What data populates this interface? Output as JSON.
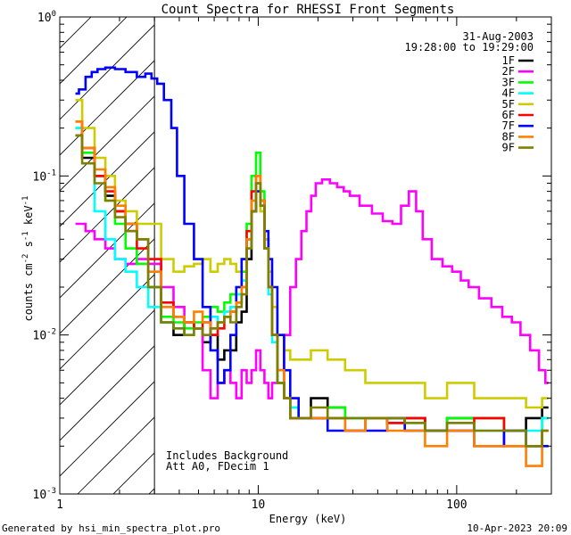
{
  "chart_data": {
    "type": "line",
    "title": "Count Spectra for RHESSI Front Segments",
    "xlabel": "Energy (keV)",
    "ylabel_main": "counts cm",
    "ylabel_sup1": "-2",
    "ylabel_mid1": " s",
    "ylabel_sup2": "-1",
    "ylabel_mid2": " keV",
    "ylabel_sup3": "-1",
    "xscale": "log",
    "yscale": "log",
    "xlim": [
      1,
      300
    ],
    "ylim": [
      0.001,
      1
    ],
    "xticks": [
      {
        "value": 1,
        "label": "1"
      },
      {
        "value": 10,
        "label": "10"
      },
      {
        "value": 100,
        "label": "100"
      }
    ],
    "yticks": [
      {
        "value": 1,
        "base": "10",
        "exp": "0"
      },
      {
        "value": 0.1,
        "base": "10",
        "exp": "-1"
      },
      {
        "value": 0.01,
        "base": "10",
        "exp": "-2"
      },
      {
        "value": 0.001,
        "base": "10",
        "exp": "-3"
      }
    ],
    "date": "31-Aug-2003",
    "time_range": "19:28:00 to 19:29:00",
    "annotation_line1": "Includes Background",
    "annotation_line2": "Att A0, FDecim 1",
    "hatched_region_max_kev": 3,
    "footer_left": "Generated by hsi_min_spectra_plot.pro",
    "footer_right": "10-Apr-2023 20:09",
    "series": [
      {
        "name": "1F",
        "color": "#000000",
        "x": [
          1.2,
          1.4,
          1.6,
          1.8,
          2,
          2.3,
          2.6,
          3,
          3.5,
          4,
          4.5,
          5,
          5.5,
          6,
          6.5,
          7,
          7.5,
          8,
          8.5,
          9,
          9.5,
          10,
          10.5,
          11,
          11.5,
          12,
          13,
          14,
          15,
          17,
          20,
          25,
          30,
          40,
          50,
          60,
          80,
          100,
          150,
          200,
          250,
          290
        ],
        "y": [
          0.18,
          0.13,
          0.1,
          0.075,
          0.06,
          0.05,
          0.04,
          0.02,
          0.012,
          0.01,
          0.012,
          0.011,
          0.009,
          0.01,
          0.007,
          0.008,
          0.008,
          0.012,
          0.014,
          0.03,
          0.06,
          0.09,
          0.07,
          0.04,
          0.02,
          0.01,
          0.005,
          0.004,
          0.003,
          0.003,
          0.004,
          0.0035,
          0.003,
          0.003,
          0.0028,
          0.003,
          0.0025,
          0.003,
          0.003,
          0.0025,
          0.003,
          0.0035
        ]
      },
      {
        "name": "2F",
        "color": "#ff00ff",
        "x": [
          1.2,
          1.3,
          1.4,
          1.6,
          1.8,
          2,
          2.3,
          2.6,
          3,
          3.5,
          4,
          4.5,
          5,
          5.5,
          6,
          6.5,
          7,
          7.5,
          8,
          8.5,
          9,
          9.5,
          10,
          10.5,
          11,
          11.5,
          12,
          13,
          14,
          15,
          16,
          17,
          18,
          19,
          20,
          22,
          24,
          26,
          28,
          30,
          35,
          40,
          45,
          50,
          55,
          60,
          65,
          70,
          80,
          90,
          100,
          110,
          120,
          140,
          160,
          180,
          200,
          220,
          250,
          270,
          290
        ],
        "y": [
          0.05,
          0.05,
          0.045,
          0.04,
          0.035,
          0.03,
          0.028,
          0.03,
          0.028,
          0.02,
          0.015,
          0.012,
          0.011,
          0.006,
          0.004,
          0.005,
          0.006,
          0.005,
          0.004,
          0.006,
          0.005,
          0.006,
          0.008,
          0.006,
          0.005,
          0.004,
          0.005,
          0.006,
          0.01,
          0.02,
          0.03,
          0.045,
          0.06,
          0.075,
          0.09,
          0.095,
          0.09,
          0.085,
          0.08,
          0.075,
          0.065,
          0.058,
          0.052,
          0.05,
          0.065,
          0.08,
          0.06,
          0.04,
          0.03,
          0.027,
          0.025,
          0.022,
          0.02,
          0.017,
          0.015,
          0.013,
          0.012,
          0.01,
          0.008,
          0.006,
          0.005
        ]
      },
      {
        "name": "3F",
        "color": "#00ff00",
        "x": [
          1.2,
          1.4,
          1.6,
          1.8,
          2,
          2.3,
          2.6,
          3,
          3.5,
          4,
          4.5,
          5,
          5.5,
          6,
          6.5,
          7,
          7.5,
          8,
          8.5,
          9,
          9.5,
          10,
          10.5,
          11,
          11.5,
          12,
          13,
          14,
          15,
          17,
          20,
          25,
          30,
          40,
          50,
          60,
          80,
          100,
          150,
          200,
          250,
          290
        ],
        "y": [
          0.2,
          0.14,
          0.1,
          0.07,
          0.05,
          0.035,
          0.028,
          0.02,
          0.013,
          0.012,
          0.011,
          0.012,
          0.013,
          0.015,
          0.014,
          0.016,
          0.018,
          0.02,
          0.025,
          0.05,
          0.1,
          0.14,
          0.08,
          0.04,
          0.02,
          0.01,
          0.005,
          0.004,
          0.0035,
          0.003,
          0.003,
          0.0035,
          0.003,
          0.003,
          0.003,
          0.0028,
          0.0025,
          0.003,
          0.003,
          0.0025,
          0.002,
          0.003
        ]
      },
      {
        "name": "4F",
        "color": "#00ffff",
        "x": [
          1.2,
          1.4,
          1.6,
          1.8,
          2,
          2.3,
          2.6,
          3,
          3.5,
          4,
          4.5,
          5,
          5.5,
          6,
          6.5,
          7,
          7.5,
          8,
          8.5,
          9,
          9.5,
          10,
          10.5,
          11,
          11.5,
          12,
          13,
          14,
          15,
          17,
          20,
          25,
          30,
          40,
          50,
          60,
          80,
          100,
          150,
          200,
          250,
          290
        ],
        "y": [
          0.2,
          0.15,
          0.06,
          0.04,
          0.03,
          0.025,
          0.02,
          0.015,
          0.012,
          0.011,
          0.01,
          0.011,
          0.012,
          0.013,
          0.012,
          0.014,
          0.015,
          0.018,
          0.022,
          0.04,
          0.07,
          0.09,
          0.06,
          0.035,
          0.018,
          0.009,
          0.005,
          0.004,
          0.0035,
          0.003,
          0.003,
          0.003,
          0.003,
          0.003,
          0.0028,
          0.0025,
          0.0025,
          0.0028,
          0.0025,
          0.002,
          0.0025,
          0.003
        ]
      },
      {
        "name": "5F",
        "color": "#cccc00",
        "x": [
          1.2,
          1.4,
          1.6,
          1.8,
          2,
          2.3,
          2.6,
          3,
          3.5,
          4,
          4.5,
          5,
          5.5,
          6,
          6.5,
          7,
          7.5,
          8,
          8.5,
          9,
          9.5,
          10,
          10.5,
          11,
          11.5,
          12,
          13,
          14,
          15,
          17,
          20,
          25,
          30,
          40,
          50,
          60,
          80,
          100,
          150,
          200,
          250,
          290
        ],
        "y": [
          0.3,
          0.2,
          0.13,
          0.1,
          0.07,
          0.06,
          0.05,
          0.05,
          0.03,
          0.025,
          0.027,
          0.028,
          0.03,
          0.025,
          0.028,
          0.03,
          0.028,
          0.025,
          0.03,
          0.04,
          0.06,
          0.08,
          0.06,
          0.04,
          0.025,
          0.015,
          0.01,
          0.008,
          0.007,
          0.007,
          0.008,
          0.007,
          0.006,
          0.005,
          0.005,
          0.005,
          0.004,
          0.005,
          0.004,
          0.004,
          0.0035,
          0.004
        ]
      },
      {
        "name": "6F",
        "color": "#ff0000",
        "x": [
          1.2,
          1.4,
          1.6,
          1.8,
          2,
          2.3,
          2.6,
          3,
          3.5,
          4,
          4.5,
          5,
          5.5,
          6,
          6.5,
          7,
          7.5,
          8,
          8.5,
          9,
          9.5,
          10,
          10.5,
          11,
          11.5,
          12,
          13,
          14,
          15,
          17,
          20,
          25,
          30,
          40,
          50,
          60,
          80,
          100,
          150,
          200,
          250,
          290
        ],
        "y": [
          0.22,
          0.15,
          0.1,
          0.08,
          0.06,
          0.045,
          0.035,
          0.03,
          0.016,
          0.013,
          0.012,
          0.011,
          0.012,
          0.01,
          0.011,
          0.013,
          0.014,
          0.016,
          0.02,
          0.045,
          0.08,
          0.1,
          0.07,
          0.035,
          0.02,
          0.01,
          0.006,
          0.004,
          0.003,
          0.003,
          0.003,
          0.003,
          0.0025,
          0.003,
          0.0028,
          0.003,
          0.0025,
          0.0025,
          0.003,
          0.002,
          0.002,
          0.0025
        ]
      },
      {
        "name": "7F",
        "color": "#0000ff",
        "x": [
          1.2,
          1.3,
          1.4,
          1.5,
          1.6,
          1.8,
          2,
          2.3,
          2.6,
          2.8,
          3,
          3.2,
          3.5,
          3.8,
          4,
          4.5,
          5,
          5.5,
          6,
          6.5,
          7,
          7.5,
          8,
          8.5,
          9,
          9.5,
          10,
          10.5,
          11,
          11.5,
          12,
          13,
          14,
          15,
          17,
          20,
          25,
          30,
          40,
          50,
          60,
          80,
          100,
          150,
          200,
          250,
          290
        ],
        "y": [
          0.33,
          0.35,
          0.42,
          0.45,
          0.47,
          0.48,
          0.47,
          0.45,
          0.42,
          0.44,
          0.41,
          0.38,
          0.3,
          0.2,
          0.1,
          0.05,
          0.03,
          0.015,
          0.008,
          0.005,
          0.006,
          0.01,
          0.02,
          0.03,
          0.04,
          0.06,
          0.08,
          0.065,
          0.045,
          0.03,
          0.02,
          0.01,
          0.006,
          0.004,
          0.003,
          0.003,
          0.0025,
          0.0025,
          0.0025,
          0.003,
          0.0025,
          0.0025,
          0.0025,
          0.002,
          0.0025,
          0.002,
          0.002
        ]
      },
      {
        "name": "8F",
        "color": "#ff8000",
        "x": [
          1.2,
          1.4,
          1.6,
          1.8,
          2,
          2.3,
          2.6,
          3,
          3.5,
          4,
          4.5,
          5,
          5.5,
          6,
          6.5,
          7,
          7.5,
          8,
          8.5,
          9,
          9.5,
          10,
          10.5,
          11,
          11.5,
          12,
          13,
          14,
          15,
          17,
          20,
          25,
          30,
          40,
          50,
          60,
          80,
          100,
          150,
          200,
          250,
          290
        ],
        "y": [
          0.22,
          0.15,
          0.11,
          0.085,
          0.065,
          0.05,
          0.04,
          0.025,
          0.015,
          0.013,
          0.012,
          0.014,
          0.012,
          0.011,
          0.012,
          0.013,
          0.014,
          0.016,
          0.02,
          0.04,
          0.07,
          0.1,
          0.07,
          0.035,
          0.02,
          0.01,
          0.006,
          0.004,
          0.003,
          0.003,
          0.003,
          0.003,
          0.0025,
          0.003,
          0.0025,
          0.0025,
          0.002,
          0.0025,
          0.002,
          0.002,
          0.0015,
          0.0025
        ]
      },
      {
        "name": "9F",
        "color": "#808000",
        "x": [
          1.2,
          1.4,
          1.6,
          1.8,
          2,
          2.3,
          2.6,
          3,
          3.5,
          4,
          4.5,
          5,
          5.5,
          6,
          6.5,
          7,
          7.5,
          8,
          8.5,
          9,
          9.5,
          10,
          10.5,
          11,
          11.5,
          12,
          13,
          14,
          15,
          17,
          20,
          25,
          30,
          40,
          50,
          60,
          80,
          100,
          150,
          200,
          250,
          290
        ],
        "y": [
          0.18,
          0.12,
          0.09,
          0.07,
          0.055,
          0.045,
          0.04,
          0.02,
          0.012,
          0.011,
          0.01,
          0.011,
          0.01,
          0.011,
          0.012,
          0.013,
          0.012,
          0.015,
          0.018,
          0.035,
          0.06,
          0.09,
          0.065,
          0.035,
          0.02,
          0.01,
          0.005,
          0.004,
          0.003,
          0.003,
          0.0035,
          0.003,
          0.003,
          0.003,
          0.003,
          0.0028,
          0.0025,
          0.0028,
          0.0025,
          0.0025,
          0.002,
          0.0025
        ]
      }
    ]
  }
}
